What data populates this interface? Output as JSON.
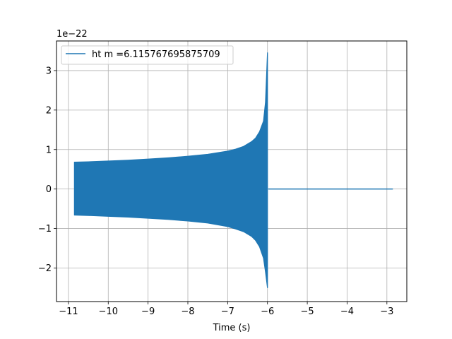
{
  "chart_data": {
    "type": "line",
    "title": "",
    "xlabel": "Time (s)",
    "ylabel": "",
    "y_offset_label": "1e−22",
    "xlim": [
      -11.3,
      -2.5
    ],
    "ylim": [
      -2.85,
      3.75
    ],
    "x_ticks": [
      -11,
      -10,
      -9,
      -8,
      -7,
      -6,
      -5,
      -4,
      -3
    ],
    "x_tick_labels": [
      "−11",
      "−10",
      "−9",
      "−8",
      "−7",
      "−6",
      "−5",
      "−4",
      "−3"
    ],
    "y_ticks": [
      -2,
      -1,
      0,
      1,
      2,
      3
    ],
    "y_tick_labels": [
      "−2",
      "−1",
      "0",
      "1",
      "2",
      "3"
    ],
    "grid": true,
    "legend_position": "top-left",
    "series": [
      {
        "name": "ht m =6.115767695875709",
        "color": "#1f77b4",
        "envelope_upper": {
          "x": [
            -10.85,
            -10.5,
            -10.0,
            -9.5,
            -9.0,
            -8.5,
            -8.0,
            -7.5,
            -7.0,
            -6.8,
            -6.6,
            -6.4,
            -6.3,
            -6.2,
            -6.1,
            -6.05,
            -6.0
          ],
          "y": [
            0.68,
            0.69,
            0.71,
            0.73,
            0.76,
            0.79,
            0.83,
            0.88,
            0.96,
            1.01,
            1.08,
            1.2,
            1.29,
            1.45,
            1.72,
            2.2,
            3.45
          ]
        },
        "envelope_lower": {
          "x": [
            -10.85,
            -10.5,
            -10.0,
            -9.5,
            -9.0,
            -8.5,
            -8.0,
            -7.5,
            -7.0,
            -6.8,
            -6.6,
            -6.4,
            -6.3,
            -6.2,
            -6.1,
            -6.05,
            -6.0
          ],
          "y": [
            -0.66,
            -0.67,
            -0.69,
            -0.71,
            -0.74,
            -0.77,
            -0.81,
            -0.86,
            -0.95,
            -1.01,
            -1.08,
            -1.2,
            -1.3,
            -1.46,
            -1.75,
            -2.1,
            -2.5
          ]
        },
        "flat_segment": {
          "x": [
            -5.98,
            -2.85
          ],
          "y": [
            0.0,
            0.0
          ]
        }
      }
    ]
  }
}
